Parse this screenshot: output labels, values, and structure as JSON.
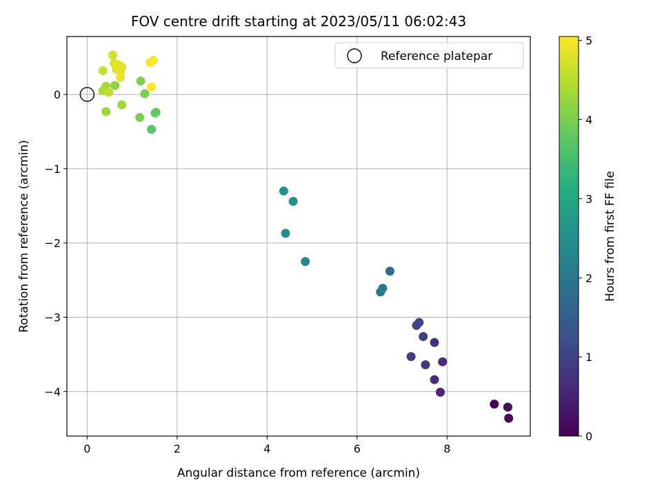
{
  "chart_data": {
    "type": "scatter",
    "title": "FOV centre drift starting at 2023/05/11 06:02:43",
    "xlabel": "Angular distance from reference (arcmin)",
    "ylabel": "Rotation from reference (arcmin)",
    "xlim": [
      -0.45,
      9.85
    ],
    "ylim": [
      -4.6,
      0.78
    ],
    "xticks": [
      0,
      2,
      4,
      6,
      8
    ],
    "xtick_labels": [
      "0",
      "2",
      "4",
      "6",
      "8"
    ],
    "yticks": [
      0,
      -1,
      -2,
      -3,
      -4
    ],
    "ytick_labels": [
      "0",
      "−1",
      "−2",
      "−3",
      "−4"
    ],
    "grid": true,
    "colormap": "viridis",
    "colorbar": {
      "label": "Hours from first FF file",
      "range": [
        0,
        5.05
      ],
      "ticks": [
        0,
        1,
        2,
        3,
        4,
        5
      ],
      "tick_labels": [
        "0",
        "1",
        "2",
        "3",
        "4",
        "5"
      ]
    },
    "legend": {
      "position": "top-right",
      "entries": [
        "Reference platepar"
      ]
    },
    "reference_point": {
      "x": 0,
      "y": 0,
      "marker": "open-circle"
    },
    "points": [
      {
        "x": 9.05,
        "y": -4.17,
        "c": 0.05
      },
      {
        "x": 9.35,
        "y": -4.21,
        "c": 0.1
      },
      {
        "x": 9.37,
        "y": -4.36,
        "c": 0.05
      },
      {
        "x": 7.85,
        "y": -4.01,
        "c": 0.55
      },
      {
        "x": 7.72,
        "y": -3.84,
        "c": 0.65
      },
      {
        "x": 7.9,
        "y": -3.6,
        "c": 0.6
      },
      {
        "x": 7.52,
        "y": -3.64,
        "c": 0.8
      },
      {
        "x": 7.2,
        "y": -3.53,
        "c": 0.9
      },
      {
        "x": 7.72,
        "y": -3.34,
        "c": 0.7
      },
      {
        "x": 7.47,
        "y": -3.26,
        "c": 0.95
      },
      {
        "x": 7.32,
        "y": -3.11,
        "c": 1.05
      },
      {
        "x": 7.38,
        "y": -3.07,
        "c": 1.1
      },
      {
        "x": 6.73,
        "y": -2.38,
        "c": 1.8
      },
      {
        "x": 6.52,
        "y": -2.66,
        "c": 2.0
      },
      {
        "x": 6.57,
        "y": -2.61,
        "c": 2.1
      },
      {
        "x": 4.85,
        "y": -2.25,
        "c": 2.35
      },
      {
        "x": 4.41,
        "y": -1.87,
        "c": 2.45
      },
      {
        "x": 4.58,
        "y": -1.44,
        "c": 2.5
      },
      {
        "x": 4.37,
        "y": -1.3,
        "c": 2.55
      },
      {
        "x": 1.43,
        "y": -0.47,
        "c": 3.7
      },
      {
        "x": 1.53,
        "y": -0.24,
        "c": 3.8
      },
      {
        "x": 1.51,
        "y": -0.25,
        "c": 3.8
      },
      {
        "x": 1.17,
        "y": -0.31,
        "c": 4.0
      },
      {
        "x": 1.28,
        "y": 0.01,
        "c": 4.0
      },
      {
        "x": 1.19,
        "y": 0.18,
        "c": 4.05
      },
      {
        "x": 0.42,
        "y": -0.23,
        "c": 4.3
      },
      {
        "x": 0.77,
        "y": -0.14,
        "c": 4.3
      },
      {
        "x": 0.62,
        "y": 0.12,
        "c": 4.2
      },
      {
        "x": 0.42,
        "y": 0.11,
        "c": 4.3
      },
      {
        "x": 0.35,
        "y": 0.05,
        "c": 4.4
      },
      {
        "x": 0.48,
        "y": 0.03,
        "c": 4.55
      },
      {
        "x": 0.35,
        "y": 0.32,
        "c": 4.65
      },
      {
        "x": 0.57,
        "y": 0.53,
        "c": 4.7
      },
      {
        "x": 0.6,
        "y": 0.42,
        "c": 4.8
      },
      {
        "x": 0.65,
        "y": 0.34,
        "c": 4.8
      },
      {
        "x": 0.7,
        "y": 0.4,
        "c": 4.85
      },
      {
        "x": 0.74,
        "y": 0.31,
        "c": 4.9
      },
      {
        "x": 0.77,
        "y": 0.37,
        "c": 4.85
      },
      {
        "x": 0.74,
        "y": 0.23,
        "c": 4.9
      },
      {
        "x": 1.4,
        "y": 0.43,
        "c": 5.0
      },
      {
        "x": 1.47,
        "y": 0.46,
        "c": 5.0
      },
      {
        "x": 1.43,
        "y": 0.1,
        "c": 5.05
      }
    ]
  }
}
